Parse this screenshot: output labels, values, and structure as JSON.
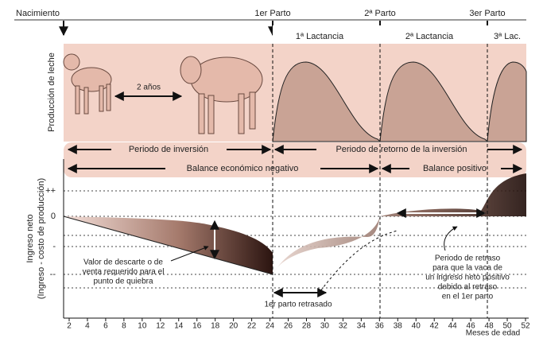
{
  "timeline": {
    "birth": "Nacimiento",
    "calving_1": "1er Parto",
    "calving_2": "2ª Parto",
    "calving_3": "3er Parto"
  },
  "top_panel": {
    "y_label": "Producción de leche",
    "lactation_1": "1ª Lactancia",
    "lactation_2": "2ª Lactancia",
    "lactation_3": "3ª Lac.",
    "age_gap": "2 años"
  },
  "periods": {
    "investment": "Periodo de inversión",
    "return": "Periodo de retorno de la inversión",
    "negative_balance": "Balance económico negativo",
    "positive_balance": "Balance positivo"
  },
  "bottom_panel": {
    "y_label_line_1": "Ingreso neto",
    "y_label_line_2": "(Ingreso - costo de producción)",
    "y_levels": [
      "++",
      "0",
      "-",
      "--"
    ],
    "x_ticks": [
      2,
      4,
      6,
      8,
      10,
      12,
      14,
      16,
      18,
      20,
      22,
      24,
      26,
      28,
      30,
      32,
      34,
      36,
      38,
      40,
      42,
      44,
      46,
      48,
      50,
      52
    ],
    "x_label": "Meses de edad",
    "annotations": {
      "cull_value": [
        "Valor de descarte o de",
        "venta requerido para el",
        "punto de quiebra"
      ],
      "delay_period": [
        "Periodo de retraso",
        "para que la vaca de",
        "un ingreso neto positivo",
        "debido al retraso",
        "en el 1er parto"
      ],
      "delayed_calving": "1er parto retrasado"
    }
  }
}
